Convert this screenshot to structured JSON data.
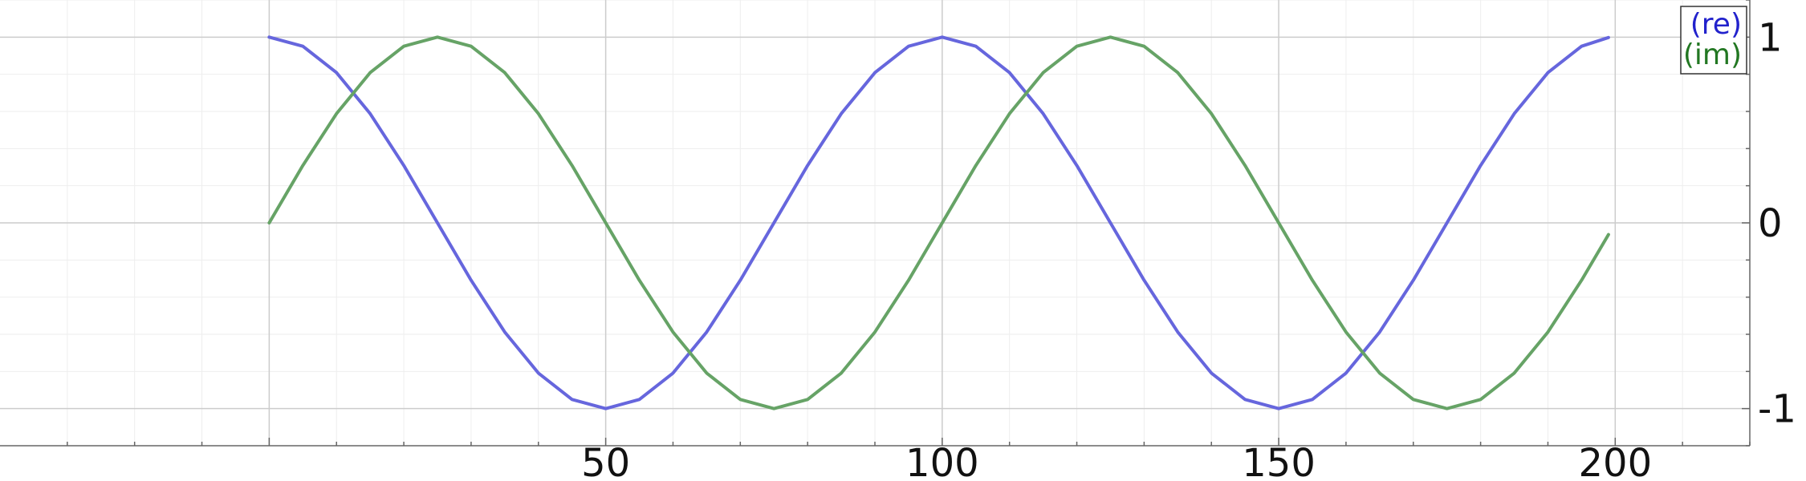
{
  "chart_data": {
    "type": "line",
    "title": "",
    "xlabel": "",
    "ylabel": "",
    "xlim": [
      -40,
      220
    ],
    "ylim": [
      -1.2,
      1.2
    ],
    "x_ticks": [
      50,
      100,
      150,
      200
    ],
    "x_tick_labels": [
      "50",
      "100",
      "150",
      "200"
    ],
    "y_ticks": [
      1,
      0,
      -1
    ],
    "y_tick_labels": [
      "1",
      "0",
      "-1"
    ],
    "grid": true,
    "y_axis_side": "right",
    "legend": {
      "position": "top-right",
      "entries": [
        "(re)",
        "(im)"
      ]
    },
    "x": [
      0,
      5,
      10,
      15,
      20,
      25,
      30,
      35,
      40,
      45,
      50,
      55,
      60,
      65,
      70,
      75,
      80,
      85,
      90,
      95,
      100,
      105,
      110,
      115,
      120,
      125,
      130,
      135,
      140,
      145,
      150,
      155,
      160,
      165,
      170,
      175,
      180,
      185,
      190,
      195,
      199
    ],
    "series": [
      {
        "name": "(re)",
        "color": "#6666dd",
        "values": [
          1.0,
          0.951,
          0.809,
          0.588,
          0.309,
          0.0,
          -0.309,
          -0.588,
          -0.809,
          -0.951,
          -1.0,
          -0.951,
          -0.809,
          -0.588,
          -0.309,
          0.0,
          0.309,
          0.588,
          0.809,
          0.951,
          1.0,
          0.951,
          0.809,
          0.588,
          0.309,
          0.0,
          -0.309,
          -0.588,
          -0.809,
          -0.951,
          -1.0,
          -0.951,
          -0.809,
          -0.588,
          -0.309,
          0.0,
          0.309,
          0.588,
          0.809,
          0.951,
          0.998
        ]
      },
      {
        "name": "(im)",
        "color": "#66a366",
        "values": [
          0.0,
          0.309,
          0.588,
          0.809,
          0.951,
          1.0,
          0.951,
          0.809,
          0.588,
          0.309,
          0.0,
          -0.309,
          -0.588,
          -0.809,
          -0.951,
          -1.0,
          -0.951,
          -0.809,
          -0.588,
          -0.309,
          0.0,
          0.309,
          0.588,
          0.809,
          0.951,
          1.0,
          0.951,
          0.809,
          0.588,
          0.309,
          0.0,
          -0.309,
          -0.588,
          -0.809,
          -0.951,
          -1.0,
          -0.951,
          -0.809,
          -0.588,
          -0.309,
          -0.063
        ]
      }
    ],
    "legend_text_colors": [
      "#2222cc",
      "#227722"
    ]
  }
}
